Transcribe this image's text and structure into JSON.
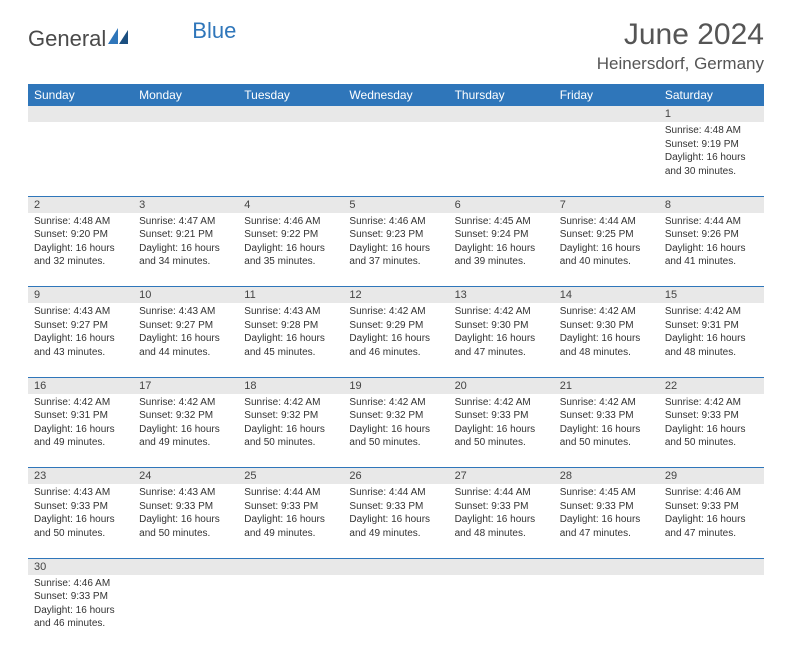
{
  "logo": {
    "part1": "General",
    "part2": "Blue"
  },
  "title": "June 2024",
  "location": "Heinersdorf, Germany",
  "colors": {
    "header_bg": "#2f76ba",
    "header_fg": "#ffffff",
    "daynum_bg": "#e8e8e8",
    "border": "#2f76ba",
    "logo_gray": "#4a4a4a",
    "logo_blue": "#2f76ba",
    "text": "#333333"
  },
  "weekdays": [
    "Sunday",
    "Monday",
    "Tuesday",
    "Wednesday",
    "Thursday",
    "Friday",
    "Saturday"
  ],
  "weeks": [
    [
      null,
      null,
      null,
      null,
      null,
      null,
      {
        "n": "1",
        "sunrise": "4:48 AM",
        "sunset": "9:19 PM",
        "dl": "16 hours and 30 minutes."
      }
    ],
    [
      {
        "n": "2",
        "sunrise": "4:48 AM",
        "sunset": "9:20 PM",
        "dl": "16 hours and 32 minutes."
      },
      {
        "n": "3",
        "sunrise": "4:47 AM",
        "sunset": "9:21 PM",
        "dl": "16 hours and 34 minutes."
      },
      {
        "n": "4",
        "sunrise": "4:46 AM",
        "sunset": "9:22 PM",
        "dl": "16 hours and 35 minutes."
      },
      {
        "n": "5",
        "sunrise": "4:46 AM",
        "sunset": "9:23 PM",
        "dl": "16 hours and 37 minutes."
      },
      {
        "n": "6",
        "sunrise": "4:45 AM",
        "sunset": "9:24 PM",
        "dl": "16 hours and 39 minutes."
      },
      {
        "n": "7",
        "sunrise": "4:44 AM",
        "sunset": "9:25 PM",
        "dl": "16 hours and 40 minutes."
      },
      {
        "n": "8",
        "sunrise": "4:44 AM",
        "sunset": "9:26 PM",
        "dl": "16 hours and 41 minutes."
      }
    ],
    [
      {
        "n": "9",
        "sunrise": "4:43 AM",
        "sunset": "9:27 PM",
        "dl": "16 hours and 43 minutes."
      },
      {
        "n": "10",
        "sunrise": "4:43 AM",
        "sunset": "9:27 PM",
        "dl": "16 hours and 44 minutes."
      },
      {
        "n": "11",
        "sunrise": "4:43 AM",
        "sunset": "9:28 PM",
        "dl": "16 hours and 45 minutes."
      },
      {
        "n": "12",
        "sunrise": "4:42 AM",
        "sunset": "9:29 PM",
        "dl": "16 hours and 46 minutes."
      },
      {
        "n": "13",
        "sunrise": "4:42 AM",
        "sunset": "9:30 PM",
        "dl": "16 hours and 47 minutes."
      },
      {
        "n": "14",
        "sunrise": "4:42 AM",
        "sunset": "9:30 PM",
        "dl": "16 hours and 48 minutes."
      },
      {
        "n": "15",
        "sunrise": "4:42 AM",
        "sunset": "9:31 PM",
        "dl": "16 hours and 48 minutes."
      }
    ],
    [
      {
        "n": "16",
        "sunrise": "4:42 AM",
        "sunset": "9:31 PM",
        "dl": "16 hours and 49 minutes."
      },
      {
        "n": "17",
        "sunrise": "4:42 AM",
        "sunset": "9:32 PM",
        "dl": "16 hours and 49 minutes."
      },
      {
        "n": "18",
        "sunrise": "4:42 AM",
        "sunset": "9:32 PM",
        "dl": "16 hours and 50 minutes."
      },
      {
        "n": "19",
        "sunrise": "4:42 AM",
        "sunset": "9:32 PM",
        "dl": "16 hours and 50 minutes."
      },
      {
        "n": "20",
        "sunrise": "4:42 AM",
        "sunset": "9:33 PM",
        "dl": "16 hours and 50 minutes."
      },
      {
        "n": "21",
        "sunrise": "4:42 AM",
        "sunset": "9:33 PM",
        "dl": "16 hours and 50 minutes."
      },
      {
        "n": "22",
        "sunrise": "4:42 AM",
        "sunset": "9:33 PM",
        "dl": "16 hours and 50 minutes."
      }
    ],
    [
      {
        "n": "23",
        "sunrise": "4:43 AM",
        "sunset": "9:33 PM",
        "dl": "16 hours and 50 minutes."
      },
      {
        "n": "24",
        "sunrise": "4:43 AM",
        "sunset": "9:33 PM",
        "dl": "16 hours and 50 minutes."
      },
      {
        "n": "25",
        "sunrise": "4:44 AM",
        "sunset": "9:33 PM",
        "dl": "16 hours and 49 minutes."
      },
      {
        "n": "26",
        "sunrise": "4:44 AM",
        "sunset": "9:33 PM",
        "dl": "16 hours and 49 minutes."
      },
      {
        "n": "27",
        "sunrise": "4:44 AM",
        "sunset": "9:33 PM",
        "dl": "16 hours and 48 minutes."
      },
      {
        "n": "28",
        "sunrise": "4:45 AM",
        "sunset": "9:33 PM",
        "dl": "16 hours and 47 minutes."
      },
      {
        "n": "29",
        "sunrise": "4:46 AM",
        "sunset": "9:33 PM",
        "dl": "16 hours and 47 minutes."
      }
    ],
    [
      {
        "n": "30",
        "sunrise": "4:46 AM",
        "sunset": "9:33 PM",
        "dl": "16 hours and 46 minutes."
      },
      null,
      null,
      null,
      null,
      null,
      null
    ]
  ],
  "labels": {
    "sunrise": "Sunrise: ",
    "sunset": "Sunset: ",
    "daylight": "Daylight: "
  }
}
